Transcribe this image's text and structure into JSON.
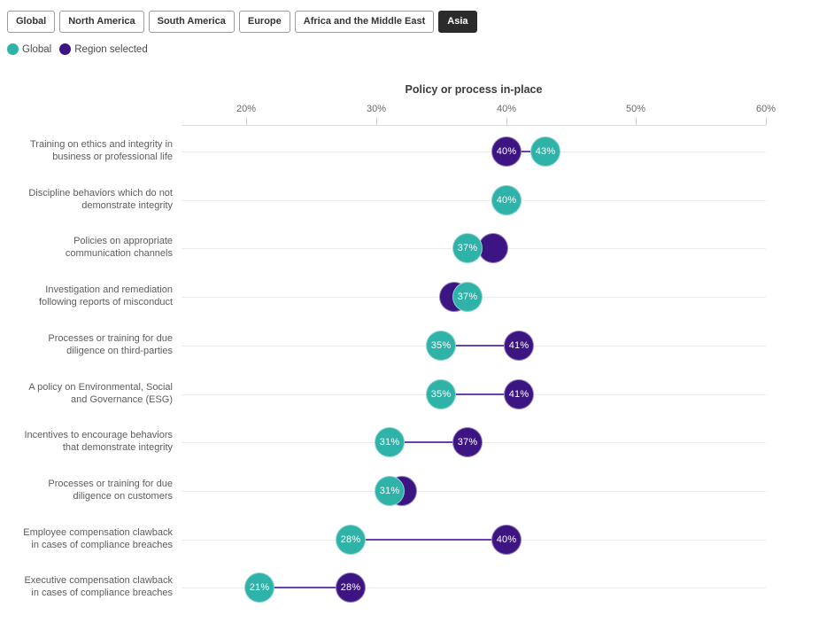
{
  "tabs": {
    "items": [
      {
        "label": "Global",
        "selected": false
      },
      {
        "label": "North America",
        "selected": false
      },
      {
        "label": "South America",
        "selected": false
      },
      {
        "label": "Europe",
        "selected": false
      },
      {
        "label": "Africa and the Middle East",
        "selected": false
      },
      {
        "label": "Asia",
        "selected": true
      }
    ]
  },
  "legend": {
    "items": [
      {
        "label": "Global",
        "color": "#2FB2A7"
      },
      {
        "label": "Region selected",
        "color": "#3D1583"
      }
    ]
  },
  "chart_data": {
    "type": "scatter",
    "subtype": "dumbbell-dot-plot",
    "title": "Policy or process in-place",
    "selected_region": "Asia",
    "x_axis": {
      "tick_labels": [
        "20%",
        "30%",
        "40%",
        "50%",
        "60%"
      ],
      "tick_values": [
        20,
        30,
        40,
        50,
        60
      ],
      "min": 15,
      "max": 60,
      "unit": "%"
    },
    "grid": "horizontal-row-lines",
    "legend_position": "top-left",
    "series": [
      {
        "name": "Global",
        "color": "#2FB2A7"
      },
      {
        "name": "Region selected",
        "color": "#3D1583"
      }
    ],
    "connector_color": "#6B3FB0",
    "rows": [
      {
        "category": "Training on ethics and integrity in business or professional life",
        "label_lines": [
          "Training on ethics and integrity in",
          "business or professional life"
        ],
        "global": 43,
        "region": 40,
        "global_label": "43%",
        "region_label": "40%",
        "region_label_visible": true
      },
      {
        "category": "Discipline behaviors which do not demonstrate integrity",
        "label_lines": [
          "Discipline behaviors which do not",
          "demonstrate integrity"
        ],
        "global": 40,
        "region": 40,
        "global_label": "40%",
        "region_label": "",
        "region_label_visible": false
      },
      {
        "category": "Policies on appropriate communication channels",
        "label_lines": [
          "Policies on appropriate",
          "communication channels"
        ],
        "global": 37,
        "region": 39,
        "global_label": "37%",
        "region_label": "",
        "region_label_visible": false
      },
      {
        "category": "Investigation and remediation following reports of misconduct",
        "label_lines": [
          "Investigation and remediation",
          "following reports of misconduct"
        ],
        "global": 37,
        "region": 36,
        "global_label": "37%",
        "region_label": "",
        "region_label_visible": false
      },
      {
        "category": "Processes or training for due diligence on third-parties",
        "label_lines": [
          "Processes or training for due",
          "diligence on third-parties"
        ],
        "global": 35,
        "region": 41,
        "global_label": "35%",
        "region_label": "41%",
        "region_label_visible": true
      },
      {
        "category": "A policy on Environmental, Social and Governance (ESG)",
        "label_lines": [
          "A policy on Environmental, Social",
          "and Governance (ESG)"
        ],
        "global": 35,
        "region": 41,
        "global_label": "35%",
        "region_label": "41%",
        "region_label_visible": true
      },
      {
        "category": "Incentives to encourage behaviors that demonstrate integrity",
        "label_lines": [
          "Incentives to encourage behaviors",
          "that demonstrate integrity"
        ],
        "global": 31,
        "region": 37,
        "global_label": "31%",
        "region_label": "37%",
        "region_label_visible": true
      },
      {
        "category": "Processes or training for due diligence on customers",
        "label_lines": [
          "Processes or training for due",
          "diligence on customers"
        ],
        "global": 31,
        "region": 32,
        "global_label": "31%",
        "region_label": "",
        "region_label_visible": false
      },
      {
        "category": "Employee compensation clawback in cases of compliance breaches",
        "label_lines": [
          "Employee compensation clawback",
          "in cases of compliance breaches"
        ],
        "global": 28,
        "region": 40,
        "global_label": "28%",
        "region_label": "40%",
        "region_label_visible": true
      },
      {
        "category": "Executive compensation clawback in cases of compliance breaches",
        "label_lines": [
          "Executive compensation clawback",
          "in cases of compliance breaches"
        ],
        "global": 21,
        "region": 28,
        "global_label": "21%",
        "region_label": "28%",
        "region_label_visible": true
      }
    ]
  }
}
